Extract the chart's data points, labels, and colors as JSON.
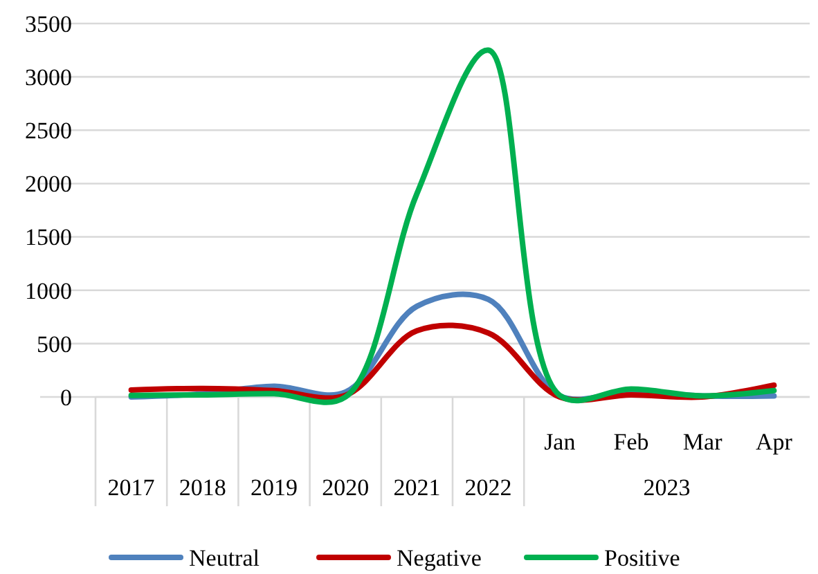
{
  "chart_data": {
    "type": "line",
    "categories": [
      "2017",
      "2018",
      "2019",
      "2020",
      "2021",
      "2022",
      "Jan",
      "Feb",
      "Mar",
      "Apr"
    ],
    "series": [
      {
        "name": "Neutral",
        "color": "#4f81bd",
        "values": [
          0,
          30,
          100,
          45,
          850,
          915,
          10,
          50,
          10,
          10
        ]
      },
      {
        "name": "Negative",
        "color": "#c00000",
        "values": [
          65,
          80,
          60,
          15,
          620,
          600,
          0,
          20,
          0,
          110
        ]
      },
      {
        "name": "Positive",
        "color": "#00b050",
        "values": [
          15,
          20,
          30,
          0,
          1905,
          3250,
          15,
          75,
          10,
          60
        ]
      }
    ],
    "ylim": [
      0,
      3500
    ],
    "yticks": [
      0,
      500,
      1000,
      1500,
      2000,
      2500,
      3000,
      3500
    ],
    "grid": "y",
    "legend": "bottom",
    "marker": "none",
    "line_style": "solid",
    "annotations": [
      "2023"
    ]
  }
}
